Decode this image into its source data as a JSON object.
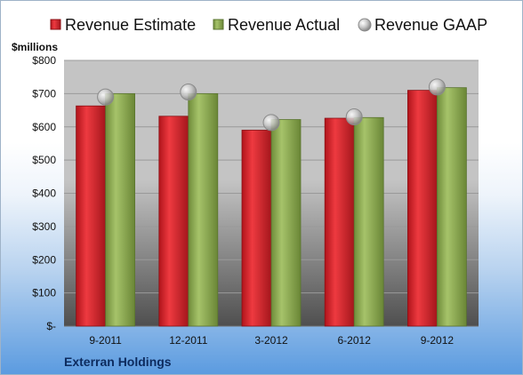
{
  "chart_data": {
    "type": "bar",
    "y_unit_label": "$millions",
    "categories": [
      "9-2011",
      "12-2011",
      "3-2012",
      "6-2012",
      "9-2012"
    ],
    "series": [
      {
        "name": "Revenue Estimate",
        "kind": "bar",
        "color": "#d9232a",
        "values": [
          663,
          632,
          590,
          626,
          710
        ]
      },
      {
        "name": "Revenue Actual",
        "kind": "bar",
        "color": "#8fae52",
        "values": [
          700,
          700,
          622,
          628,
          718
        ]
      },
      {
        "name": "Revenue GAAP",
        "kind": "marker",
        "color": "#b0b0b0",
        "values": [
          690,
          705,
          613,
          630,
          720
        ]
      }
    ],
    "ylim": [
      0,
      800
    ],
    "y_ticks": [
      0,
      100,
      200,
      300,
      400,
      500,
      600,
      700,
      800
    ],
    "y_tick_labels": [
      "$-",
      "$100",
      "$200",
      "$300",
      "$400",
      "$500",
      "$600",
      "$700",
      "$800"
    ],
    "grid": true,
    "legend_position": "top",
    "company": "Exterran Holdings"
  }
}
